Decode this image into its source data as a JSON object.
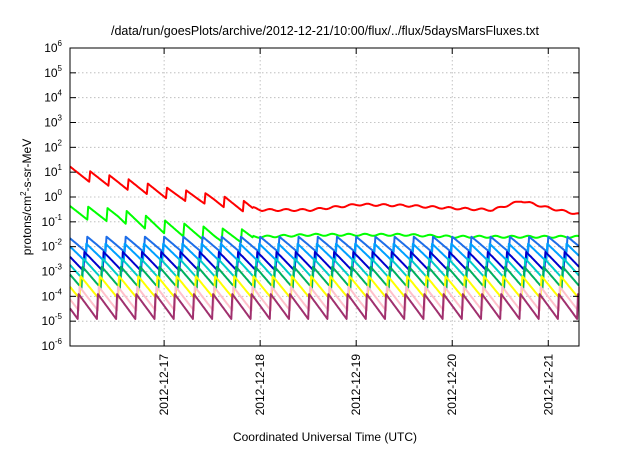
{
  "chart_data": {
    "type": "line",
    "title": "/data/run/goesPlots/archive/2012-12-21/10:00/flux/../flux/5daysMarsFluxes.txt",
    "xlabel": "Coordinated Universal Time (UTC)",
    "ylabel": "protons/cm²-s-sr-MeV",
    "ylabel_parts": {
      "before": "protons/cm",
      "sup": "2",
      "after": "-s-sr-MeV"
    },
    "x_axis": {
      "type": "date",
      "range": [
        "2012-12-16",
        "2012-12-21"
      ]
    },
    "x_tick_labels": [
      "2012-12-17",
      "2012-12-18",
      "2012-12-19",
      "2012-12-20",
      "2012-12-21"
    ],
    "y_scale": "log",
    "ylim": [
      1e-06,
      1000000.0
    ],
    "y_tick_labels": [
      {
        "base": "10",
        "exp": "6"
      },
      {
        "base": "10",
        "exp": "5"
      },
      {
        "base": "10",
        "exp": "4"
      },
      {
        "base": "10",
        "exp": "3"
      },
      {
        "base": "10",
        "exp": "2"
      },
      {
        "base": "10",
        "exp": "1"
      },
      {
        "base": "10",
        "exp": "0"
      },
      {
        "base": "10",
        "exp": "-1"
      },
      {
        "base": "10",
        "exp": "-2"
      },
      {
        "base": "10",
        "exp": "-3"
      },
      {
        "base": "10",
        "exp": "-4"
      },
      {
        "base": "10",
        "exp": "-5"
      },
      {
        "base": "10",
        "exp": "-6"
      }
    ],
    "grid": true,
    "legend": "none",
    "series": [
      {
        "color": "#ff0000",
        "start_day": 0.0,
        "end_day": 5.3,
        "anchors": [
          [
            0.0,
            10.0
          ],
          [
            0.5,
            4.0
          ],
          [
            1.0,
            1.5
          ],
          [
            1.5,
            0.8
          ],
          [
            2.0,
            0.3
          ],
          [
            2.5,
            0.3
          ],
          [
            3.0,
            0.5
          ],
          [
            3.5,
            0.45
          ],
          [
            4.0,
            0.35
          ],
          [
            4.4,
            0.3
          ],
          [
            4.7,
            0.7
          ],
          [
            5.0,
            0.35
          ],
          [
            5.3,
            0.2
          ]
        ],
        "sawtooth_until_day": 1.9,
        "saw_amp": 0.45
      },
      {
        "color": "#00ff00",
        "start_day": 0.0,
        "end_day": 5.3,
        "anchors": [
          [
            0.0,
            0.25
          ],
          [
            0.5,
            0.18
          ],
          [
            1.0,
            0.06
          ],
          [
            1.5,
            0.03
          ],
          [
            2.0,
            0.025
          ],
          [
            2.5,
            0.03
          ],
          [
            3.0,
            0.03
          ],
          [
            3.5,
            0.03
          ],
          [
            4.0,
            0.025
          ],
          [
            4.5,
            0.025
          ],
          [
            5.0,
            0.025
          ],
          [
            5.3,
            0.025
          ]
        ],
        "sawtooth_until_day": 1.9,
        "saw_amp": 0.55
      },
      {
        "color": "#1e6ee8",
        "level": 0.0125,
        "saw_amp": 0.65
      },
      {
        "color": "#00a0ff",
        "level": 0.006,
        "saw_amp": 0.75
      },
      {
        "color": "#0000cc",
        "level": 0.0025,
        "saw_amp": 0.8
      },
      {
        "color": "#00ccc8",
        "level": 0.0013,
        "saw_amp": 0.85
      },
      {
        "color": "#00b060",
        "level": 0.0006,
        "saw_amp": 0.9
      },
      {
        "color": "#ffff00",
        "level": 0.00022,
        "saw_amp": 0.95
      },
      {
        "color": "#ffc0cb",
        "level": 8e-05,
        "saw_amp": 1.0
      },
      {
        "color": "#a0306e",
        "level": 4e-05,
        "saw_amp": 1.05
      }
    ]
  }
}
